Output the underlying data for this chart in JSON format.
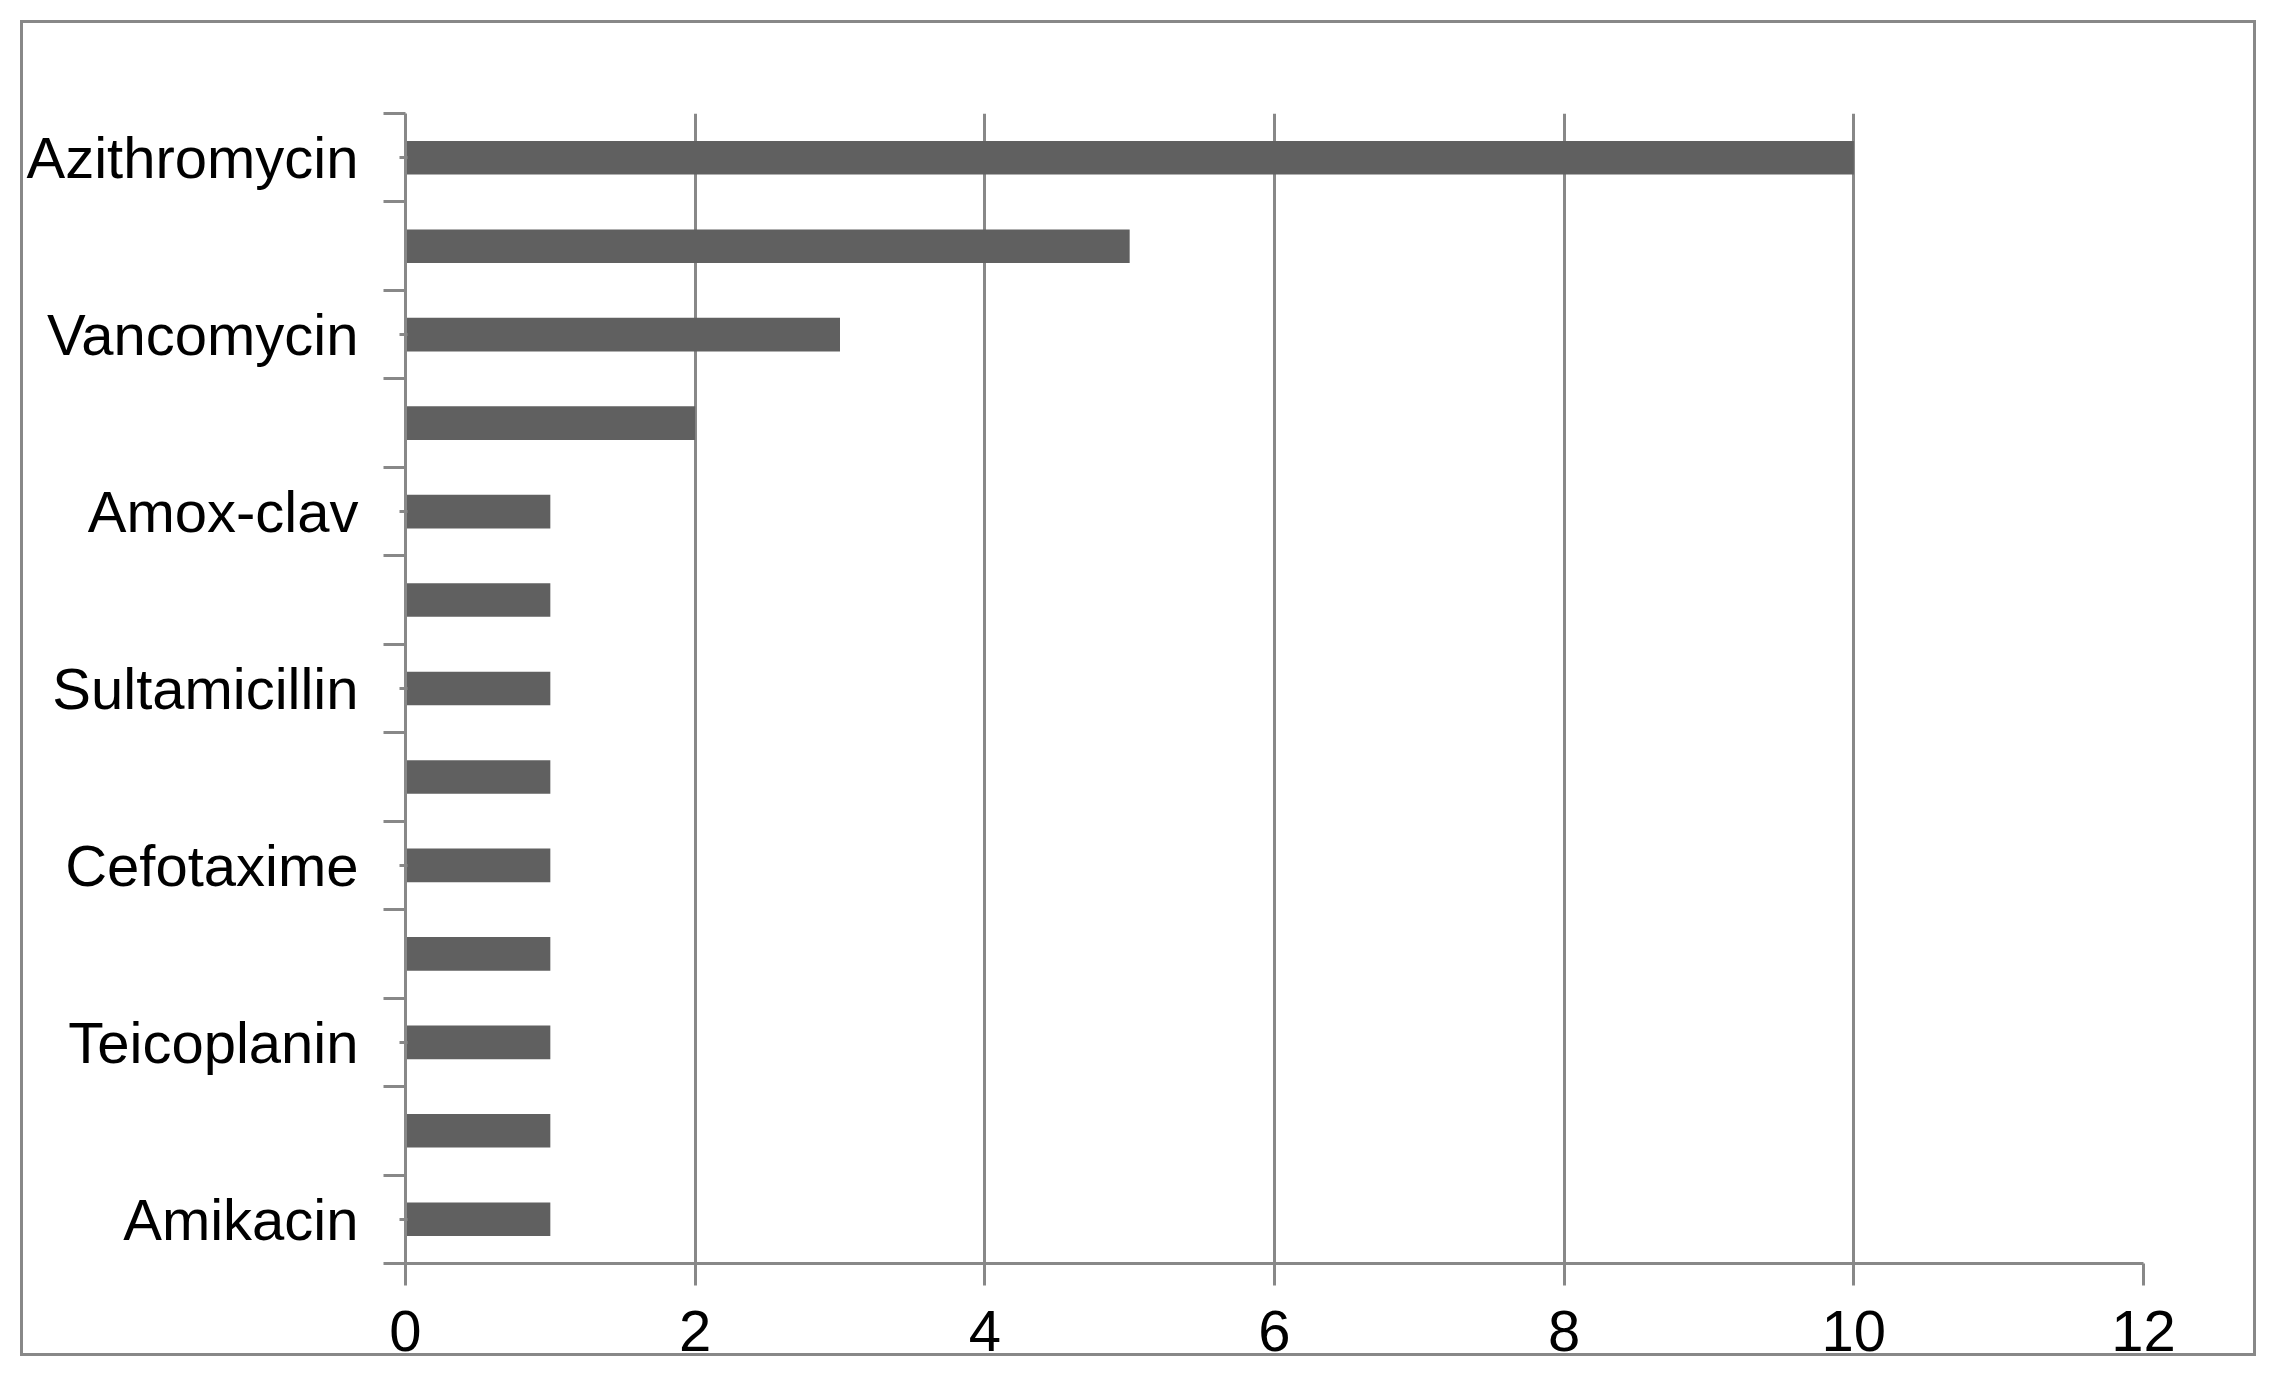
{
  "chart_data": {
    "type": "bar",
    "orientation": "horizontal",
    "categories": [
      "Azithromycin",
      null,
      "Vancomycin",
      null,
      "Amox-clav",
      null,
      "Sultamicillin",
      null,
      "Cefotaxime",
      null,
      "Teicoplanin",
      null,
      "Amikacin"
    ],
    "values": [
      10,
      5,
      3,
      2,
      1,
      1,
      1,
      1,
      1,
      1,
      1,
      1,
      1
    ],
    "color": "#606060",
    "xlim": [
      0,
      12
    ],
    "xticks": [
      0,
      2,
      4,
      6,
      8,
      10,
      12
    ],
    "grid": "x"
  }
}
